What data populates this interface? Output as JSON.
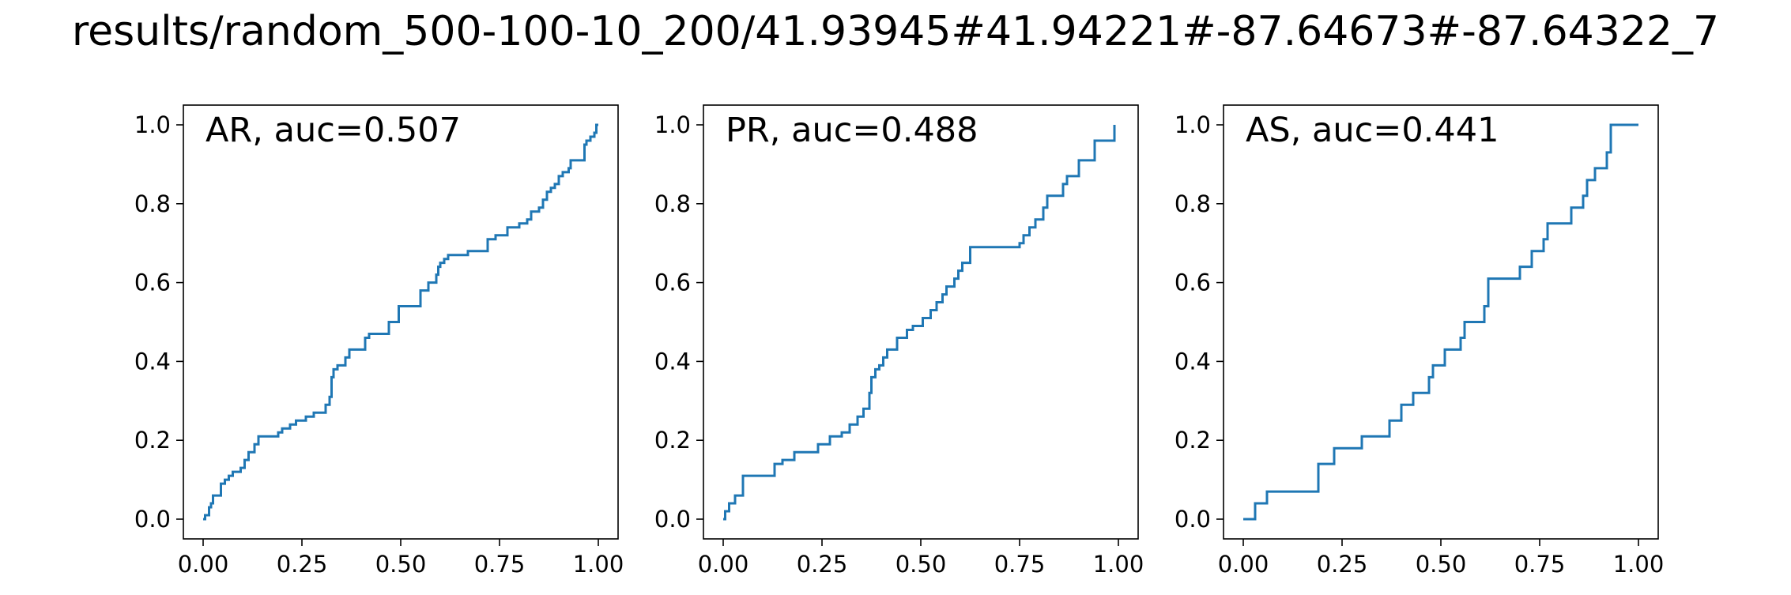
{
  "figure_title": "results/random_500-100-10_200/41.93945#41.94221#-87.64673#-87.64322_7",
  "line_color": "#1f77b4",
  "chart_data": [
    {
      "type": "line",
      "label": "AR, auc=0.507",
      "xlim": [
        0,
        1
      ],
      "ylim": [
        0,
        1
      ],
      "xticks": [
        "0.00",
        "0.25",
        "0.50",
        "0.75",
        "1.00"
      ],
      "yticks": [
        "0.0",
        "0.2",
        "0.4",
        "0.6",
        "0.8",
        "1.0"
      ],
      "grid": false,
      "points": [
        [
          0,
          0
        ],
        [
          0.005,
          0
        ],
        [
          0.005,
          0.01
        ],
        [
          0.015,
          0.01
        ],
        [
          0.015,
          0.03
        ],
        [
          0.02,
          0.03
        ],
        [
          0.02,
          0.04
        ],
        [
          0.025,
          0.04
        ],
        [
          0.025,
          0.06
        ],
        [
          0.045,
          0.06
        ],
        [
          0.045,
          0.09
        ],
        [
          0.055,
          0.09
        ],
        [
          0.055,
          0.1
        ],
        [
          0.065,
          0.1
        ],
        [
          0.065,
          0.11
        ],
        [
          0.075,
          0.11
        ],
        [
          0.075,
          0.12
        ],
        [
          0.095,
          0.12
        ],
        [
          0.095,
          0.13
        ],
        [
          0.105,
          0.13
        ],
        [
          0.105,
          0.15
        ],
        [
          0.115,
          0.15
        ],
        [
          0.115,
          0.17
        ],
        [
          0.13,
          0.17
        ],
        [
          0.13,
          0.19
        ],
        [
          0.14,
          0.19
        ],
        [
          0.14,
          0.21
        ],
        [
          0.19,
          0.21
        ],
        [
          0.19,
          0.22
        ],
        [
          0.2,
          0.22
        ],
        [
          0.2,
          0.23
        ],
        [
          0.22,
          0.23
        ],
        [
          0.22,
          0.24
        ],
        [
          0.235,
          0.24
        ],
        [
          0.235,
          0.25
        ],
        [
          0.26,
          0.25
        ],
        [
          0.26,
          0.26
        ],
        [
          0.28,
          0.26
        ],
        [
          0.28,
          0.27
        ],
        [
          0.31,
          0.27
        ],
        [
          0.31,
          0.29
        ],
        [
          0.32,
          0.29
        ],
        [
          0.32,
          0.31
        ],
        [
          0.325,
          0.31
        ],
        [
          0.325,
          0.36
        ],
        [
          0.33,
          0.36
        ],
        [
          0.33,
          0.38
        ],
        [
          0.34,
          0.38
        ],
        [
          0.34,
          0.39
        ],
        [
          0.36,
          0.39
        ],
        [
          0.36,
          0.41
        ],
        [
          0.37,
          0.41
        ],
        [
          0.37,
          0.43
        ],
        [
          0.41,
          0.43
        ],
        [
          0.41,
          0.46
        ],
        [
          0.42,
          0.46
        ],
        [
          0.42,
          0.47
        ],
        [
          0.47,
          0.47
        ],
        [
          0.47,
          0.5
        ],
        [
          0.495,
          0.5
        ],
        [
          0.495,
          0.54
        ],
        [
          0.55,
          0.54
        ],
        [
          0.55,
          0.58
        ],
        [
          0.57,
          0.58
        ],
        [
          0.57,
          0.6
        ],
        [
          0.59,
          0.6
        ],
        [
          0.59,
          0.62
        ],
        [
          0.595,
          0.62
        ],
        [
          0.595,
          0.64
        ],
        [
          0.6,
          0.64
        ],
        [
          0.6,
          0.65
        ],
        [
          0.61,
          0.65
        ],
        [
          0.61,
          0.66
        ],
        [
          0.62,
          0.66
        ],
        [
          0.62,
          0.67
        ],
        [
          0.67,
          0.67
        ],
        [
          0.67,
          0.68
        ],
        [
          0.72,
          0.68
        ],
        [
          0.72,
          0.71
        ],
        [
          0.74,
          0.71
        ],
        [
          0.74,
          0.72
        ],
        [
          0.77,
          0.72
        ],
        [
          0.77,
          0.74
        ],
        [
          0.8,
          0.74
        ],
        [
          0.8,
          0.75
        ],
        [
          0.82,
          0.75
        ],
        [
          0.82,
          0.76
        ],
        [
          0.83,
          0.76
        ],
        [
          0.83,
          0.78
        ],
        [
          0.85,
          0.78
        ],
        [
          0.85,
          0.79
        ],
        [
          0.86,
          0.79
        ],
        [
          0.86,
          0.81
        ],
        [
          0.87,
          0.81
        ],
        [
          0.87,
          0.83
        ],
        [
          0.88,
          0.83
        ],
        [
          0.88,
          0.84
        ],
        [
          0.89,
          0.84
        ],
        [
          0.89,
          0.85
        ],
        [
          0.9,
          0.85
        ],
        [
          0.9,
          0.87
        ],
        [
          0.91,
          0.87
        ],
        [
          0.91,
          0.88
        ],
        [
          0.925,
          0.88
        ],
        [
          0.925,
          0.89
        ],
        [
          0.93,
          0.89
        ],
        [
          0.93,
          0.91
        ],
        [
          0.965,
          0.91
        ],
        [
          0.965,
          0.95
        ],
        [
          0.97,
          0.95
        ],
        [
          0.97,
          0.96
        ],
        [
          0.98,
          0.96
        ],
        [
          0.98,
          0.97
        ],
        [
          0.99,
          0.97
        ],
        [
          0.99,
          0.98
        ],
        [
          0.995,
          0.98
        ],
        [
          0.995,
          1.0
        ],
        [
          1.0,
          1.0
        ]
      ]
    },
    {
      "type": "line",
      "label": "PR, auc=0.488",
      "xlim": [
        0,
        1
      ],
      "ylim": [
        0,
        1
      ],
      "xticks": [
        "0.00",
        "0.25",
        "0.50",
        "0.75",
        "1.00"
      ],
      "yticks": [
        "0.0",
        "0.2",
        "0.4",
        "0.6",
        "0.8",
        "1.0"
      ],
      "grid": false,
      "points": [
        [
          0,
          0
        ],
        [
          0.005,
          0
        ],
        [
          0.005,
          0.02
        ],
        [
          0.015,
          0.02
        ],
        [
          0.015,
          0.04
        ],
        [
          0.03,
          0.04
        ],
        [
          0.03,
          0.06
        ],
        [
          0.05,
          0.06
        ],
        [
          0.05,
          0.11
        ],
        [
          0.13,
          0.11
        ],
        [
          0.13,
          0.14
        ],
        [
          0.15,
          0.14
        ],
        [
          0.15,
          0.15
        ],
        [
          0.18,
          0.15
        ],
        [
          0.18,
          0.17
        ],
        [
          0.24,
          0.17
        ],
        [
          0.24,
          0.19
        ],
        [
          0.27,
          0.19
        ],
        [
          0.27,
          0.21
        ],
        [
          0.3,
          0.21
        ],
        [
          0.3,
          0.22
        ],
        [
          0.32,
          0.22
        ],
        [
          0.32,
          0.24
        ],
        [
          0.34,
          0.24
        ],
        [
          0.34,
          0.26
        ],
        [
          0.355,
          0.26
        ],
        [
          0.355,
          0.28
        ],
        [
          0.37,
          0.28
        ],
        [
          0.37,
          0.32
        ],
        [
          0.375,
          0.32
        ],
        [
          0.375,
          0.36
        ],
        [
          0.385,
          0.36
        ],
        [
          0.385,
          0.38
        ],
        [
          0.395,
          0.38
        ],
        [
          0.395,
          0.39
        ],
        [
          0.405,
          0.39
        ],
        [
          0.405,
          0.41
        ],
        [
          0.415,
          0.41
        ],
        [
          0.415,
          0.43
        ],
        [
          0.44,
          0.43
        ],
        [
          0.44,
          0.46
        ],
        [
          0.465,
          0.46
        ],
        [
          0.465,
          0.48
        ],
        [
          0.48,
          0.48
        ],
        [
          0.48,
          0.49
        ],
        [
          0.505,
          0.49
        ],
        [
          0.505,
          0.51
        ],
        [
          0.525,
          0.51
        ],
        [
          0.525,
          0.53
        ],
        [
          0.54,
          0.53
        ],
        [
          0.54,
          0.55
        ],
        [
          0.555,
          0.55
        ],
        [
          0.555,
          0.57
        ],
        [
          0.565,
          0.57
        ],
        [
          0.565,
          0.59
        ],
        [
          0.585,
          0.59
        ],
        [
          0.585,
          0.61
        ],
        [
          0.595,
          0.61
        ],
        [
          0.595,
          0.63
        ],
        [
          0.605,
          0.63
        ],
        [
          0.605,
          0.65
        ],
        [
          0.625,
          0.65
        ],
        [
          0.625,
          0.69
        ],
        [
          0.75,
          0.69
        ],
        [
          0.75,
          0.7
        ],
        [
          0.76,
          0.7
        ],
        [
          0.76,
          0.72
        ],
        [
          0.775,
          0.72
        ],
        [
          0.775,
          0.74
        ],
        [
          0.79,
          0.74
        ],
        [
          0.79,
          0.76
        ],
        [
          0.81,
          0.76
        ],
        [
          0.81,
          0.79
        ],
        [
          0.82,
          0.79
        ],
        [
          0.82,
          0.82
        ],
        [
          0.86,
          0.82
        ],
        [
          0.86,
          0.85
        ],
        [
          0.87,
          0.85
        ],
        [
          0.87,
          0.87
        ],
        [
          0.9,
          0.87
        ],
        [
          0.9,
          0.91
        ],
        [
          0.94,
          0.91
        ],
        [
          0.94,
          0.96
        ],
        [
          0.99,
          0.96
        ],
        [
          0.99,
          1.0
        ]
      ]
    },
    {
      "type": "line",
      "label": "AS, auc=0.441",
      "xlim": [
        0,
        1
      ],
      "ylim": [
        0,
        1
      ],
      "xticks": [
        "0.00",
        "0.25",
        "0.50",
        "0.75",
        "1.00"
      ],
      "yticks": [
        "0.0",
        "0.2",
        "0.4",
        "0.6",
        "0.8",
        "1.0"
      ],
      "grid": false,
      "points": [
        [
          0,
          0
        ],
        [
          0.03,
          0
        ],
        [
          0.03,
          0.04
        ],
        [
          0.06,
          0.04
        ],
        [
          0.06,
          0.07
        ],
        [
          0.19,
          0.07
        ],
        [
          0.19,
          0.14
        ],
        [
          0.23,
          0.14
        ],
        [
          0.23,
          0.18
        ],
        [
          0.3,
          0.18
        ],
        [
          0.3,
          0.21
        ],
        [
          0.37,
          0.21
        ],
        [
          0.37,
          0.25
        ],
        [
          0.4,
          0.25
        ],
        [
          0.4,
          0.29
        ],
        [
          0.43,
          0.29
        ],
        [
          0.43,
          0.32
        ],
        [
          0.47,
          0.32
        ],
        [
          0.47,
          0.36
        ],
        [
          0.48,
          0.36
        ],
        [
          0.48,
          0.39
        ],
        [
          0.51,
          0.39
        ],
        [
          0.51,
          0.43
        ],
        [
          0.55,
          0.43
        ],
        [
          0.55,
          0.46
        ],
        [
          0.56,
          0.46
        ],
        [
          0.56,
          0.5
        ],
        [
          0.61,
          0.5
        ],
        [
          0.61,
          0.54
        ],
        [
          0.62,
          0.54
        ],
        [
          0.62,
          0.61
        ],
        [
          0.7,
          0.61
        ],
        [
          0.7,
          0.64
        ],
        [
          0.73,
          0.64
        ],
        [
          0.73,
          0.68
        ],
        [
          0.76,
          0.68
        ],
        [
          0.76,
          0.71
        ],
        [
          0.77,
          0.71
        ],
        [
          0.77,
          0.75
        ],
        [
          0.83,
          0.75
        ],
        [
          0.83,
          0.79
        ],
        [
          0.86,
          0.79
        ],
        [
          0.86,
          0.82
        ],
        [
          0.87,
          0.82
        ],
        [
          0.87,
          0.86
        ],
        [
          0.89,
          0.86
        ],
        [
          0.89,
          0.89
        ],
        [
          0.92,
          0.89
        ],
        [
          0.92,
          0.93
        ],
        [
          0.93,
          0.93
        ],
        [
          0.93,
          1.0
        ],
        [
          1.0,
          1.0
        ]
      ]
    }
  ]
}
